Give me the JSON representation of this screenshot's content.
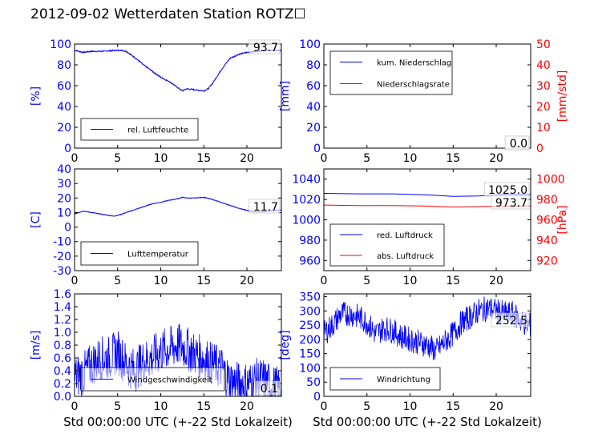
{
  "title": "2012-09-02 Wetterdaten Station ROTZ☐",
  "colors": {
    "primary": "#0000ff",
    "secondary": "#ff0000",
    "axis": "#000000"
  },
  "chart_data": [
    {
      "type": "line",
      "id": "humidity",
      "xlabel": "",
      "ylabel": "[%]",
      "xlim": [
        0,
        24
      ],
      "ylim": [
        0,
        100
      ],
      "xticks": [
        0,
        5,
        10,
        15,
        20
      ],
      "yticks": [
        0,
        20,
        40,
        60,
        80,
        100
      ],
      "value_label": "93.7",
      "legend_position": "lower-left",
      "series": [
        {
          "name": "rel. Luftfeuchte",
          "color": "#0000ff",
          "axis": "left",
          "noise": 0.6,
          "x": [
            0,
            0.5,
            1,
            2,
            3,
            4,
            5,
            5.5,
            6,
            7,
            8,
            9,
            10,
            11,
            12,
            12.5,
            13,
            14,
            15,
            15.5,
            16,
            17,
            18,
            19,
            20,
            21,
            22,
            23,
            24
          ],
          "y": [
            94,
            93,
            92,
            93,
            93,
            93.5,
            94,
            94,
            93,
            87,
            80,
            74,
            68,
            64,
            58,
            55,
            57,
            56,
            55,
            57,
            62,
            75,
            86,
            90,
            92,
            93,
            94,
            94,
            93.7
          ]
        }
      ]
    },
    {
      "type": "line",
      "id": "precipitation",
      "xlabel": "",
      "ylabel": "[mm]",
      "y2label": "[mm/std]",
      "xlim": [
        0,
        24
      ],
      "ylim": [
        0,
        100
      ],
      "y2lim": [
        0,
        50
      ],
      "xticks": [
        0,
        5,
        10,
        15,
        20
      ],
      "yticks": [
        0,
        20,
        40,
        60,
        80,
        100
      ],
      "y2ticks": [
        0,
        10,
        20,
        30,
        40,
        50
      ],
      "value_label": "0.0",
      "value_label_2": "0.0",
      "legend_position": "upper-left",
      "series": [
        {
          "name": "kum. Niederschlag",
          "color": "#0000ff",
          "axis": "left",
          "noise": 0,
          "x": [
            0,
            24
          ],
          "y": [
            0,
            0
          ]
        },
        {
          "name": "Niederschlagsrate",
          "color": "#ff0000",
          "axis": "right",
          "noise": 0,
          "x": [
            0,
            24
          ],
          "y": [
            0,
            0
          ]
        }
      ]
    },
    {
      "type": "line",
      "id": "temperature",
      "xlabel": "",
      "ylabel": "[C]",
      "xlim": [
        0,
        24
      ],
      "ylim": [
        -30,
        40
      ],
      "xticks": [
        0,
        5,
        10,
        15,
        20
      ],
      "yticks": [
        -30,
        -20,
        -10,
        0,
        10,
        20,
        30,
        40
      ],
      "value_label": "11.7",
      "legend_position": "lower-left",
      "series": [
        {
          "name": "Lufttemperatur",
          "color": "#0000ff",
          "axis": "left",
          "noise": 0.2,
          "x": [
            0,
            1,
            2,
            3,
            4,
            4.5,
            5,
            6,
            7,
            8,
            9,
            10,
            11,
            12,
            12.5,
            13,
            14,
            15,
            16,
            17,
            18,
            19,
            20,
            21,
            22,
            23,
            24
          ],
          "y": [
            9,
            11,
            10,
            9,
            8,
            7.5,
            8,
            10,
            12,
            14,
            16,
            17,
            18.5,
            19.5,
            20.5,
            20,
            20,
            20.5,
            19,
            17,
            15,
            13,
            11.5,
            10.5,
            10.5,
            11.5,
            11.7
          ]
        }
      ]
    },
    {
      "type": "line",
      "id": "pressure",
      "xlabel": "",
      "ylabel": "",
      "y2label": "[hPa]",
      "xlim": [
        0,
        24
      ],
      "ylim": [
        950,
        1050
      ],
      "y2lim": [
        910,
        1010
      ],
      "xticks": [
        0,
        5,
        10,
        15,
        20
      ],
      "yticks": [
        960,
        980,
        1000,
        1020,
        1040
      ],
      "y2ticks": [
        920,
        940,
        960,
        980,
        1000
      ],
      "value_label": "1025.0",
      "value_label_2": "973.7",
      "legend_position": "lower-left",
      "series": [
        {
          "name": "red. Luftdruck",
          "color": "#0000ff",
          "axis": "left",
          "noise": 0,
          "x": [
            0,
            4,
            8,
            12,
            15,
            18,
            21,
            24
          ],
          "y": [
            1026,
            1025.5,
            1025.5,
            1024.5,
            1023,
            1023.5,
            1025,
            1025
          ]
        },
        {
          "name": "abs. Luftdruck",
          "color": "#ff0000",
          "axis": "right",
          "noise": 0,
          "x": [
            0,
            4,
            8,
            12,
            15,
            18,
            21,
            24
          ],
          "y": [
            974.5,
            974,
            974,
            973.5,
            972.5,
            973,
            973.5,
            973.7
          ]
        }
      ]
    },
    {
      "type": "line",
      "id": "windspeed",
      "xlabel": "Std 00:00:00 UTC (+-22 Std Lokalzeit)",
      "ylabel": "[m/s]",
      "xlim": [
        0,
        24
      ],
      "ylim": [
        0,
        1.6
      ],
      "xticks": [
        0,
        5,
        10,
        15,
        20
      ],
      "yticks": [
        0.0,
        0.2,
        0.4,
        0.6,
        0.8,
        1.0,
        1.2,
        1.4,
        1.6
      ],
      "ytick_decimals": 1,
      "value_label": "0.1",
      "legend_position": "lower-left",
      "series": [
        {
          "name": "Windgeschwindigkeit",
          "color": "#0000ff",
          "axis": "left",
          "noise": 0.35,
          "x": [
            0,
            1,
            2,
            3,
            4,
            5,
            6,
            7,
            8,
            9,
            10,
            11,
            12,
            13,
            14,
            15,
            16,
            17,
            18,
            19,
            20,
            21,
            22,
            23,
            24
          ],
          "y": [
            0.3,
            0.35,
            0.5,
            0.6,
            0.6,
            0.7,
            0.5,
            0.4,
            0.55,
            0.6,
            0.7,
            0.75,
            0.8,
            0.75,
            0.65,
            0.6,
            0.5,
            0.45,
            0.25,
            0.2,
            0.2,
            0.25,
            0.25,
            0.15,
            0.1
          ]
        }
      ]
    },
    {
      "type": "line",
      "id": "winddirection",
      "xlabel": "Std 00:00:00 UTC (+-22 Std Lokalzeit)",
      "ylabel": "[deg]",
      "xlim": [
        0,
        24
      ],
      "ylim": [
        0,
        360
      ],
      "xticks": [
        0,
        5,
        10,
        15,
        20
      ],
      "yticks": [
        0,
        50,
        100,
        150,
        200,
        250,
        300,
        350
      ],
      "value_label": "252.5",
      "legend_position": "lower-left",
      "series": [
        {
          "name": "Windrichtung",
          "color": "#0000ff",
          "axis": "left",
          "noise": 45,
          "x": [
            0,
            1,
            2,
            3,
            4,
            5,
            6,
            7,
            8,
            9,
            10,
            11,
            12,
            13,
            14,
            15,
            16,
            17,
            18,
            19,
            20,
            21,
            22,
            23,
            24
          ],
          "y": [
            220,
            250,
            290,
            290,
            280,
            260,
            220,
            240,
            230,
            210,
            200,
            190,
            180,
            160,
            190,
            220,
            260,
            280,
            300,
            310,
            300,
            290,
            290,
            260,
            250
          ]
        }
      ]
    }
  ]
}
